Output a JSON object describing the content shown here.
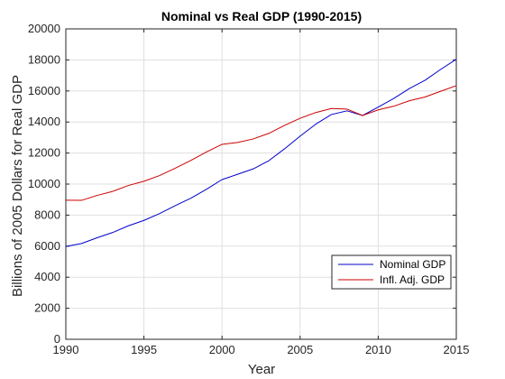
{
  "chart_data": {
    "type": "line",
    "title": "Nominal vs Real GDP (1990-2015)",
    "xlabel": "Year",
    "ylabel": "Billions of 2005 Dollars for Real GDP",
    "xlim": [
      1990,
      2015
    ],
    "ylim": [
      0,
      20000
    ],
    "xticks": [
      1990,
      1995,
      2000,
      2005,
      2010,
      2015
    ],
    "yticks": [
      0,
      2000,
      4000,
      6000,
      8000,
      10000,
      12000,
      14000,
      16000,
      18000,
      20000
    ],
    "grid": true,
    "legend_position": "lower-right",
    "x": [
      1990,
      1991,
      1992,
      1993,
      1994,
      1995,
      1996,
      1997,
      1998,
      1999,
      2000,
      2001,
      2002,
      2003,
      2004,
      2005,
      2006,
      2007,
      2008,
      2009,
      2010,
      2011,
      2012,
      2013,
      2014,
      2015
    ],
    "series": [
      {
        "name": "Nominal GDP",
        "color": "#0000cc",
        "values": [
          5980,
          6170,
          6540,
          6880,
          7310,
          7660,
          8100,
          8610,
          9090,
          9660,
          10290,
          10630,
          10980,
          11510,
          12270,
          13090,
          13860,
          14480,
          14720,
          14420,
          14960,
          15520,
          16160,
          16690,
          17390,
          18040
        ]
      },
      {
        "name": "Infl. Adj. GDP",
        "color": "#cc0000",
        "values": [
          8960,
          8950,
          9270,
          9530,
          9910,
          10180,
          10550,
          11020,
          11520,
          12070,
          12560,
          12680,
          12910,
          13270,
          13780,
          14240,
          14610,
          14870,
          14830,
          14420,
          14780,
          15020,
          15370,
          15610,
          15980,
          16340
        ]
      }
    ]
  }
}
